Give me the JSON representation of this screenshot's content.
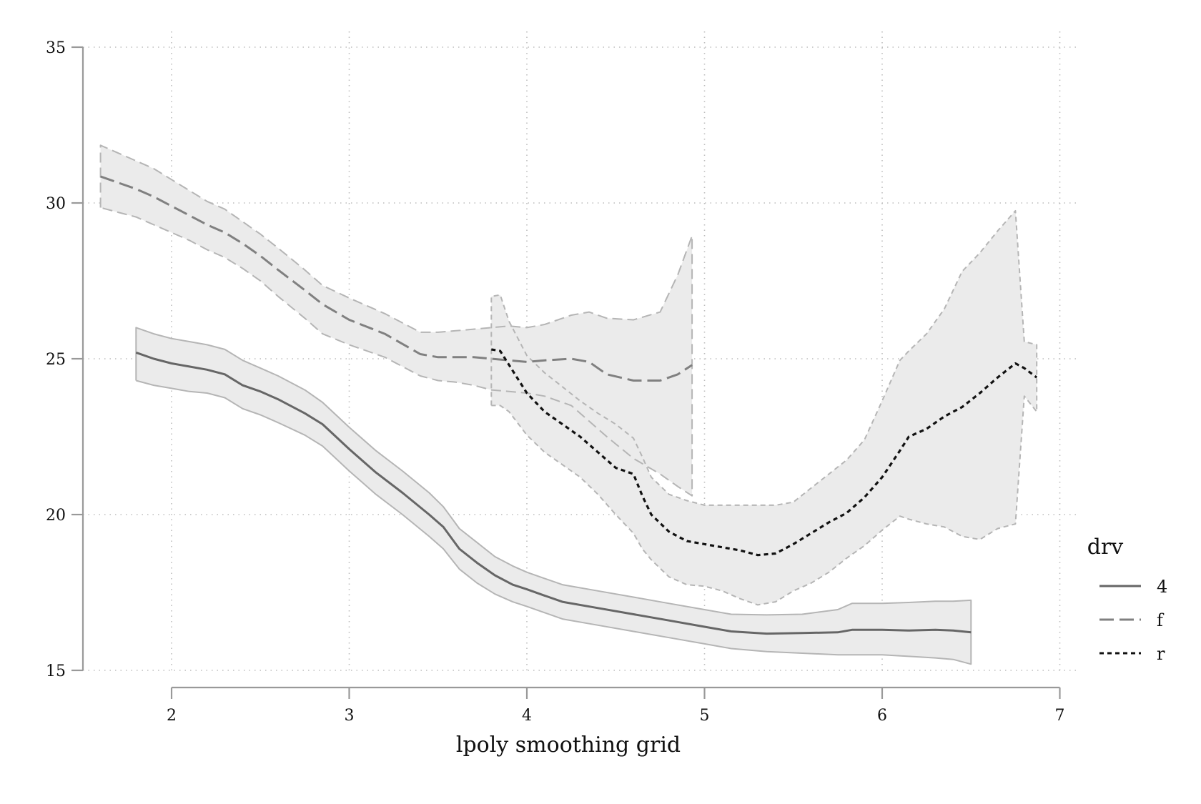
{
  "chart_data": {
    "type": "line",
    "title": "",
    "xlabel": "lpoly smoothing grid",
    "ylabel": "",
    "xlim": [
      1.5,
      7.1
    ],
    "ylim": [
      15,
      35
    ],
    "x_ticks": [
      "2",
      "3",
      "4",
      "5",
      "6",
      "7"
    ],
    "y_ticks": [
      "15",
      "20",
      "25",
      "30",
      "35"
    ],
    "grid": true,
    "legend": {
      "title": "drv",
      "placement": "right",
      "entries": [
        "4",
        "f",
        "r"
      ]
    },
    "series": [
      {
        "name": "4",
        "line_style": "solid",
        "color": "#666666",
        "band_color": "#ebebeb",
        "band_edge_color": "#b5b5b5",
        "x": [
          1.8,
          1.9,
          2.0,
          2.1,
          2.2,
          2.3,
          2.4,
          2.5,
          2.6,
          2.75,
          2.85,
          3.0,
          3.15,
          3.3,
          3.45,
          3.53,
          3.62,
          3.72,
          3.82,
          3.92,
          4.0,
          4.1,
          4.2,
          4.4,
          4.6,
          4.8,
          5.0,
          5.15,
          5.35,
          5.55,
          5.75,
          5.83,
          6.0,
          6.15,
          6.3,
          6.4,
          6.5
        ],
        "y": [
          25.2,
          25.0,
          24.85,
          24.75,
          24.65,
          24.5,
          24.15,
          23.95,
          23.7,
          23.25,
          22.9,
          22.1,
          21.35,
          20.7,
          20.0,
          19.6,
          18.9,
          18.45,
          18.05,
          17.75,
          17.6,
          17.4,
          17.2,
          17.0,
          16.8,
          16.6,
          16.4,
          16.25,
          16.18,
          16.2,
          16.22,
          16.3,
          16.3,
          16.28,
          16.3,
          16.28,
          16.22
        ],
        "lower": [
          24.3,
          24.15,
          24.05,
          23.95,
          23.9,
          23.75,
          23.4,
          23.2,
          22.95,
          22.55,
          22.2,
          21.4,
          20.65,
          20.0,
          19.3,
          18.9,
          18.25,
          17.8,
          17.45,
          17.2,
          17.05,
          16.85,
          16.65,
          16.45,
          16.25,
          16.05,
          15.85,
          15.7,
          15.6,
          15.55,
          15.5,
          15.5,
          15.5,
          15.45,
          15.4,
          15.35,
          15.2
        ],
        "upper": [
          26.0,
          25.8,
          25.65,
          25.55,
          25.45,
          25.3,
          24.95,
          24.7,
          24.45,
          24.0,
          23.6,
          22.8,
          22.05,
          21.4,
          20.7,
          20.25,
          19.55,
          19.1,
          18.65,
          18.35,
          18.15,
          17.95,
          17.75,
          17.55,
          17.35,
          17.15,
          16.95,
          16.8,
          16.78,
          16.8,
          16.95,
          17.15,
          17.15,
          17.18,
          17.22,
          17.22,
          17.25
        ]
      },
      {
        "name": "f",
        "line_style": "dashed",
        "color": "#808080",
        "band_color": "#ebebeb",
        "band_edge_color": "#b5b5b5",
        "x": [
          1.6,
          1.7,
          1.8,
          1.9,
          2.0,
          2.1,
          2.2,
          2.3,
          2.4,
          2.5,
          2.6,
          2.75,
          2.85,
          3.0,
          3.2,
          3.4,
          3.5,
          3.6,
          3.7,
          3.8,
          3.9,
          4.0,
          4.1,
          4.25,
          4.35,
          4.45,
          4.6,
          4.75,
          4.85,
          4.93
        ],
        "y": [
          30.85,
          30.65,
          30.45,
          30.2,
          29.9,
          29.6,
          29.3,
          29.05,
          28.7,
          28.3,
          27.85,
          27.2,
          26.75,
          26.25,
          25.8,
          25.15,
          25.05,
          25.05,
          25.05,
          25.0,
          24.95,
          24.9,
          24.95,
          25.0,
          24.9,
          24.5,
          24.3,
          24.3,
          24.5,
          24.8
        ],
        "lower": [
          29.85,
          29.7,
          29.55,
          29.3,
          29.05,
          28.8,
          28.5,
          28.25,
          27.9,
          27.5,
          27.0,
          26.3,
          25.8,
          25.45,
          25.05,
          24.45,
          24.3,
          24.25,
          24.15,
          24.0,
          23.95,
          23.9,
          23.8,
          23.5,
          23.0,
          22.5,
          21.8,
          21.3,
          20.9,
          20.6
        ],
        "upper": [
          31.85,
          31.6,
          31.35,
          31.1,
          30.75,
          30.4,
          30.05,
          29.8,
          29.4,
          29.0,
          28.55,
          27.85,
          27.35,
          26.95,
          26.45,
          25.85,
          25.85,
          25.9,
          25.95,
          26.0,
          26.05,
          26.0,
          26.1,
          26.4,
          26.5,
          26.3,
          26.25,
          26.5,
          27.7,
          28.95
        ]
      },
      {
        "name": "r",
        "line_style": "dotted",
        "color": "#111111",
        "band_color": "#ebebeb",
        "band_edge_color": "#b5b5b5",
        "x": [
          3.8,
          3.85,
          3.9,
          4.0,
          4.1,
          4.2,
          4.3,
          4.4,
          4.5,
          4.6,
          4.65,
          4.7,
          4.8,
          4.9,
          5.0,
          5.1,
          5.2,
          5.3,
          5.4,
          5.5,
          5.6,
          5.7,
          5.8,
          5.9,
          6.0,
          6.1,
          6.15,
          6.25,
          6.35,
          6.45,
          6.55,
          6.65,
          6.75,
          6.8,
          6.87
        ],
        "y": [
          25.3,
          25.25,
          24.8,
          23.9,
          23.3,
          22.9,
          22.5,
          22.0,
          21.5,
          21.3,
          20.6,
          20.0,
          19.45,
          19.15,
          19.05,
          18.95,
          18.85,
          18.7,
          18.75,
          19.05,
          19.4,
          19.75,
          20.05,
          20.55,
          21.2,
          22.05,
          22.5,
          22.75,
          23.15,
          23.45,
          23.9,
          24.4,
          24.85,
          24.7,
          24.4
        ],
        "lower": [
          23.5,
          23.5,
          23.3,
          22.55,
          22.0,
          21.6,
          21.2,
          20.65,
          20.0,
          19.4,
          18.9,
          18.55,
          18.0,
          17.75,
          17.7,
          17.55,
          17.3,
          17.1,
          17.2,
          17.55,
          17.8,
          18.15,
          18.6,
          19.0,
          19.5,
          19.95,
          19.85,
          19.7,
          19.6,
          19.3,
          19.2,
          19.55,
          19.7,
          23.8,
          23.3
        ],
        "upper": [
          27.0,
          27.05,
          26.2,
          25.1,
          24.55,
          24.1,
          23.65,
          23.25,
          22.9,
          22.45,
          21.85,
          21.2,
          20.65,
          20.45,
          20.3,
          20.3,
          20.3,
          20.3,
          20.3,
          20.4,
          20.85,
          21.3,
          21.75,
          22.4,
          23.65,
          24.95,
          25.25,
          25.8,
          26.6,
          27.8,
          28.4,
          29.1,
          29.75,
          25.55,
          25.45
        ]
      }
    ]
  }
}
